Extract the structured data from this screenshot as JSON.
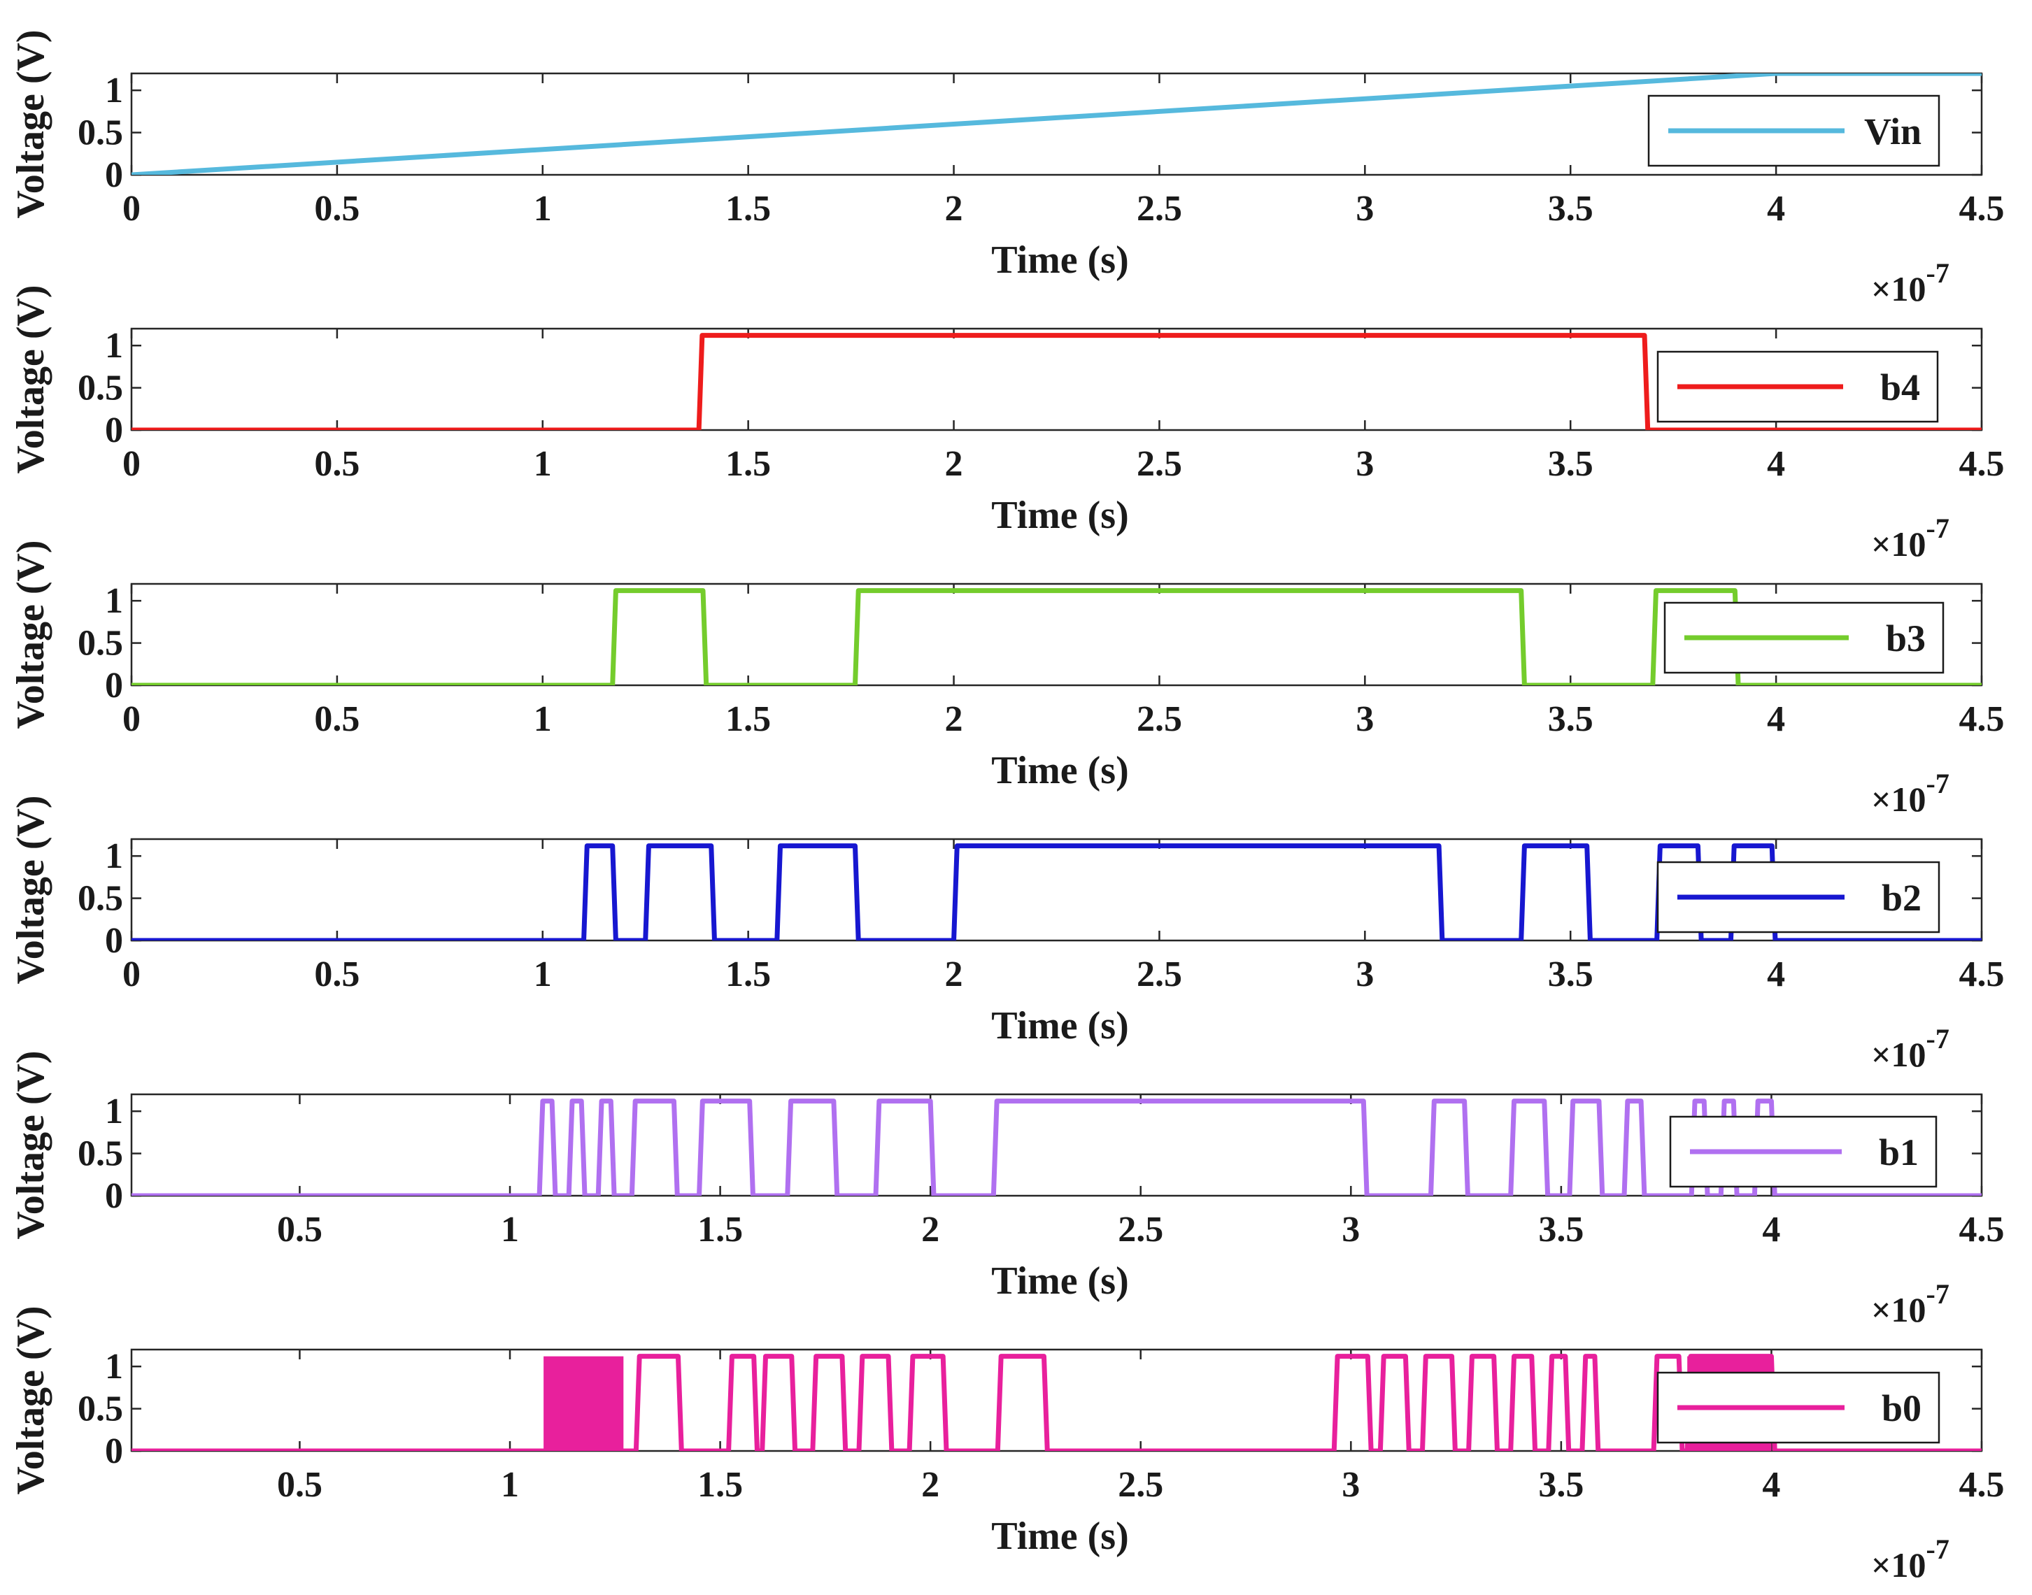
{
  "figure": {
    "exponent_base": "×10",
    "exponent_power": "-7"
  },
  "chart_data": [
    {
      "type": "line",
      "series_name": "Vin",
      "color": "#56b9dd",
      "xlabel": "Time (s)",
      "ylabel": "Voltage (V)",
      "xlim": [
        0,
        4.5
      ],
      "ylim": [
        0,
        1.2
      ],
      "xticks": [
        "0",
        "0.5",
        "1",
        "1.5",
        "2",
        "2.5",
        "3",
        "3.5",
        "4",
        "4.5"
      ],
      "yticks": [
        "0",
        "0.5",
        "1"
      ],
      "x": [
        0,
        4.0,
        4.5
      ],
      "y": [
        0,
        1.2,
        1.2
      ]
    },
    {
      "type": "line",
      "series_name": "b4",
      "color": "#ee1c1c",
      "xlabel": "Time (s)",
      "ylabel": "Voltage (V)",
      "xlim": [
        0,
        4.5
      ],
      "ylim": [
        0,
        1.2
      ],
      "xticks": [
        "0",
        "0.5",
        "1",
        "1.5",
        "2",
        "2.5",
        "3",
        "3.5",
        "4",
        "4.5"
      ],
      "yticks": [
        "0",
        "0.5",
        "1"
      ],
      "high_intervals": [
        [
          1.38,
          3.68
        ]
      ]
    },
    {
      "type": "line",
      "series_name": "b3",
      "color": "#74cc2c",
      "xlabel": "Time (s)",
      "ylabel": "Voltage (V)",
      "xlim": [
        0,
        4.5
      ],
      "ylim": [
        0,
        1.2
      ],
      "xticks": [
        "0",
        "0.5",
        "1",
        "1.5",
        "2",
        "2.5",
        "3",
        "3.5",
        "4",
        "4.5"
      ],
      "yticks": [
        "0",
        "0.5",
        "1"
      ],
      "high_intervals": [
        [
          1.17,
          1.39
        ],
        [
          1.76,
          3.38
        ],
        [
          3.7,
          3.9
        ]
      ]
    },
    {
      "type": "line",
      "series_name": "b2",
      "color": "#1717d0",
      "xlabel": "Time (s)",
      "ylabel": "Voltage (V)",
      "xlim": [
        0,
        4.5
      ],
      "ylim": [
        0,
        1.2
      ],
      "xticks": [
        "0",
        "0.5",
        "1",
        "1.5",
        "2",
        "2.5",
        "3",
        "3.5",
        "4",
        "4.5"
      ],
      "yticks": [
        "0",
        "0.5",
        "1"
      ],
      "high_intervals": [
        [
          1.1,
          1.17
        ],
        [
          1.25,
          1.41
        ],
        [
          1.57,
          1.76
        ],
        [
          2.0,
          3.18
        ],
        [
          3.38,
          3.54
        ],
        [
          3.71,
          3.81
        ],
        [
          3.89,
          3.99
        ]
      ]
    },
    {
      "type": "line",
      "series_name": "b1",
      "color": "#b070f0",
      "xlabel": "Time (s)",
      "ylabel": "Voltage (V)",
      "xlim": [
        0.1,
        4.5
      ],
      "ylim": [
        0,
        1.2
      ],
      "xticks": [
        "0.5",
        "1",
        "1.5",
        "2",
        "2.5",
        "3",
        "3.5",
        "4",
        "4.5"
      ],
      "yticks": [
        "0",
        "0.5",
        "1"
      ],
      "high_intervals": [
        [
          1.07,
          1.1
        ],
        [
          1.14,
          1.17
        ],
        [
          1.21,
          1.24
        ],
        [
          1.29,
          1.39
        ],
        [
          1.45,
          1.57
        ],
        [
          1.66,
          1.77
        ],
        [
          1.87,
          2.0
        ],
        [
          2.15,
          3.03
        ],
        [
          3.19,
          3.27
        ],
        [
          3.38,
          3.46
        ],
        [
          3.52,
          3.59
        ],
        [
          3.65,
          3.69
        ],
        [
          3.81,
          3.84
        ],
        [
          3.88,
          3.91
        ],
        [
          3.96,
          4.0
        ]
      ]
    },
    {
      "type": "line",
      "series_name": "b0",
      "color": "#e8209c",
      "xlabel": "Time (s)",
      "ylabel": "Voltage (V)",
      "xlim": [
        0.1,
        4.5
      ],
      "ylim": [
        0,
        1.2
      ],
      "xticks": [
        "0.5",
        "1",
        "1.5",
        "2",
        "2.5",
        "3",
        "3.5",
        "4",
        "4.5"
      ],
      "yticks": [
        "0",
        "0.5",
        "1"
      ],
      "dense_blocks": [
        [
          1.08,
          1.27
        ],
        [
          3.8,
          4.0
        ]
      ],
      "high_intervals": [
        [
          1.3,
          1.4
        ],
        [
          1.52,
          1.58
        ],
        [
          1.6,
          1.67
        ],
        [
          1.72,
          1.79
        ],
        [
          1.83,
          1.9
        ],
        [
          1.95,
          2.03
        ],
        [
          2.16,
          2.27
        ],
        [
          2.96,
          3.04
        ],
        [
          3.07,
          3.13
        ],
        [
          3.17,
          3.24
        ],
        [
          3.28,
          3.34
        ],
        [
          3.38,
          3.43
        ],
        [
          3.47,
          3.51
        ],
        [
          3.55,
          3.58
        ],
        [
          3.72,
          3.78
        ],
        [
          3.8,
          4.0
        ]
      ]
    }
  ]
}
